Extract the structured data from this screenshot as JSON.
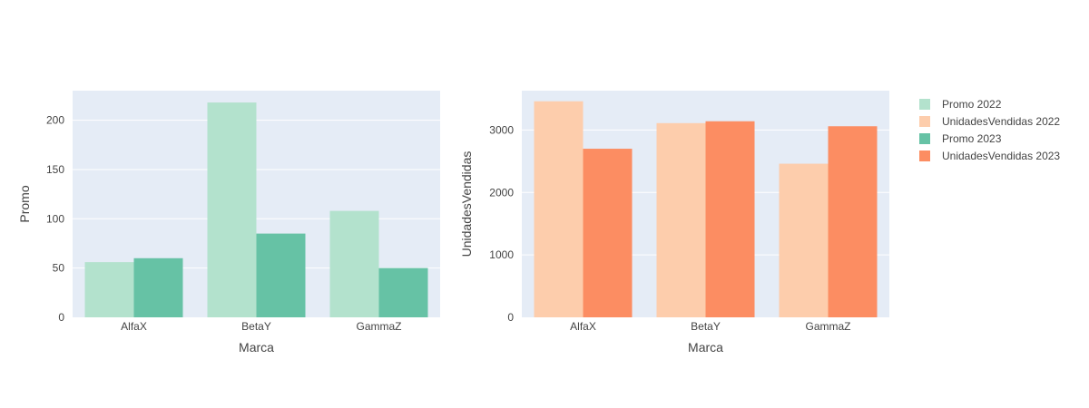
{
  "colors": {
    "plot_bg": "#E5ECF6",
    "promo_2022": "#B3E2CD",
    "promo_2023": "#66C2A5",
    "unidades_2022": "#FDCDAC",
    "unidades_2023": "#FC8D62"
  },
  "chart_data": [
    {
      "type": "bar",
      "barmode": "group",
      "categories": [
        "AlfaX",
        "BetaY",
        "GammaZ"
      ],
      "xlabel": "Marca",
      "ylabel": "Promo",
      "ylim": [
        0,
        230
      ],
      "yticks": [
        0,
        50,
        100,
        150,
        200
      ],
      "grid": true,
      "series": [
        {
          "name": "Promo 2022",
          "color_key": "promo_2022",
          "values": [
            56,
            218,
            108
          ]
        },
        {
          "name": "Promo 2023",
          "color_key": "promo_2023",
          "values": [
            60,
            85,
            50
          ]
        }
      ]
    },
    {
      "type": "bar",
      "barmode": "group",
      "categories": [
        "AlfaX",
        "BetaY",
        "GammaZ"
      ],
      "xlabel": "Marca",
      "ylabel": "UnidadesVendidas",
      "ylim": [
        0,
        3630
      ],
      "yticks": [
        0,
        1000,
        2000,
        3000
      ],
      "grid": true,
      "series": [
        {
          "name": "UnidadesVendidas 2022",
          "color_key": "unidades_2022",
          "values": [
            3460,
            3110,
            2460
          ]
        },
        {
          "name": "UnidadesVendidas 2023",
          "color_key": "unidades_2023",
          "values": [
            2700,
            3140,
            3060
          ]
        }
      ]
    }
  ],
  "legend": {
    "placement": "right",
    "items": [
      {
        "label": "Promo 2022",
        "color_key": "promo_2022"
      },
      {
        "label": "UnidadesVendidas 2022",
        "color_key": "unidades_2022"
      },
      {
        "label": "Promo 2023",
        "color_key": "promo_2023"
      },
      {
        "label": "UnidadesVendidas 2023",
        "color_key": "unidades_2023"
      }
    ]
  }
}
